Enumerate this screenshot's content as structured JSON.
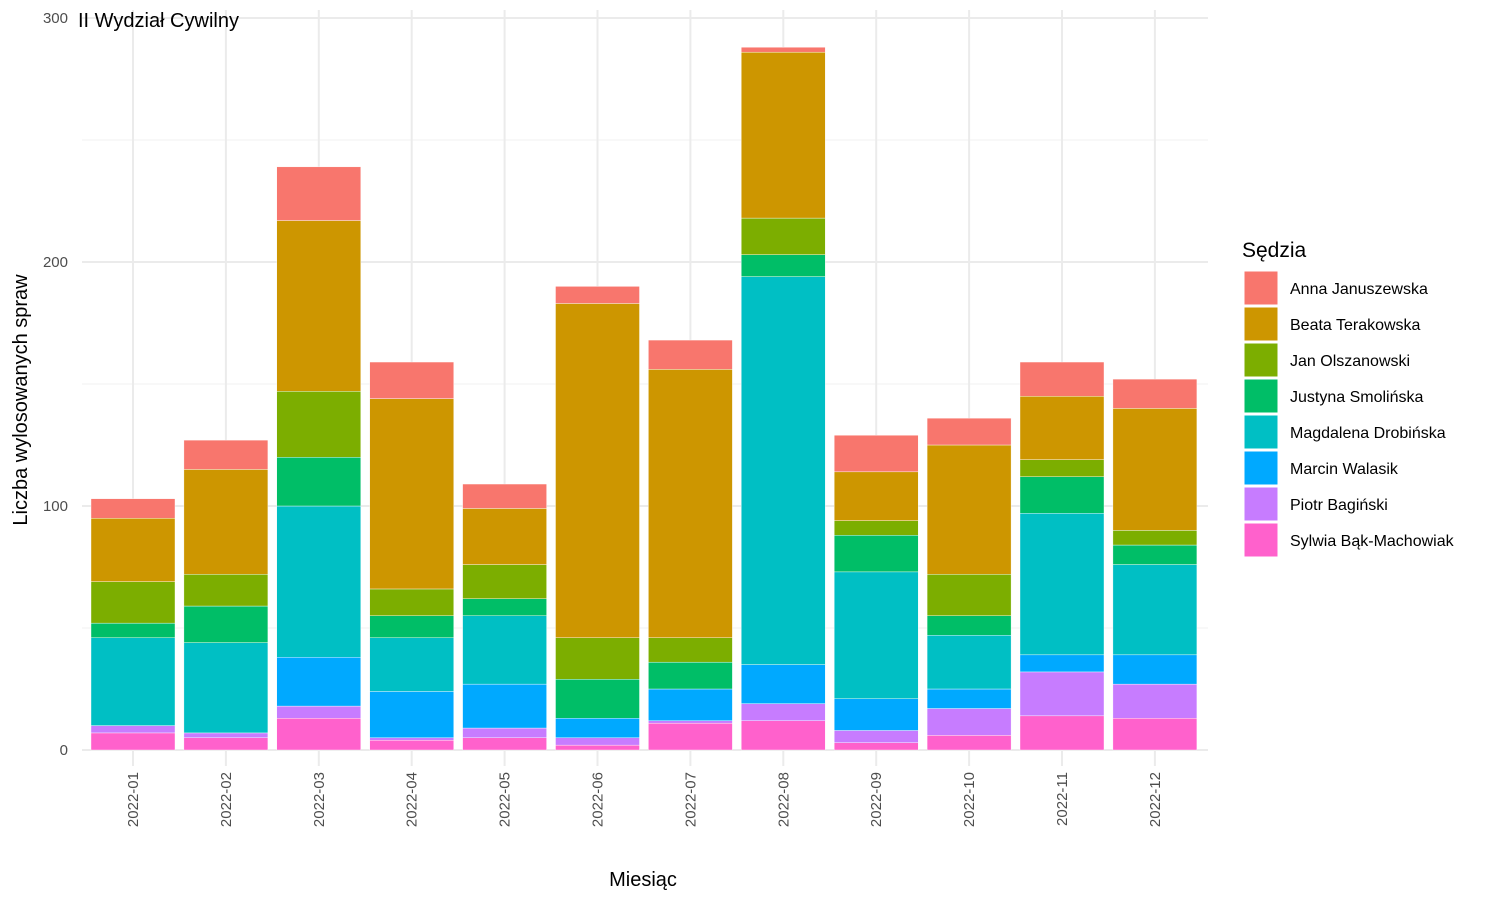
{
  "chart_data": {
    "type": "bar",
    "stacked": true,
    "title": "II Wydział Cywilny",
    "xlabel": "Miesiąc",
    "ylabel": "Liczba wylosowanych spraw",
    "ylim": [
      0,
      300
    ],
    "yticks": [
      0,
      100,
      200,
      300
    ],
    "grid": true,
    "legend_title": "Sędzia",
    "legend_position": "right",
    "categories": [
      "2022-01",
      "2022-02",
      "2022-03",
      "2022-04",
      "2022-05",
      "2022-06",
      "2022-07",
      "2022-08",
      "2022-09",
      "2022-10",
      "2022-11",
      "2022-12"
    ],
    "series": [
      {
        "name": "Anna Januszewska",
        "color": "#F8766D",
        "values": [
          8,
          12,
          22,
          15,
          10,
          7,
          12,
          2,
          15,
          11,
          14,
          12
        ]
      },
      {
        "name": "Beata Terakowska",
        "color": "#CD9600",
        "values": [
          26,
          43,
          70,
          78,
          23,
          137,
          110,
          68,
          20,
          53,
          26,
          50
        ]
      },
      {
        "name": "Jan Olszanowski",
        "color": "#7CAE00",
        "values": [
          17,
          13,
          27,
          11,
          14,
          17,
          10,
          15,
          6,
          17,
          7,
          6
        ]
      },
      {
        "name": "Justyna Smolińska",
        "color": "#00BE67",
        "values": [
          6,
          15,
          20,
          9,
          7,
          16,
          11,
          9,
          15,
          8,
          15,
          8
        ]
      },
      {
        "name": "Magdalena Drobińska",
        "color": "#00BFC4",
        "values": [
          36,
          37,
          62,
          22,
          28,
          0,
          0,
          159,
          52,
          22,
          58,
          37
        ]
      },
      {
        "name": "Marcin Walasik",
        "color": "#00A9FF",
        "values": [
          0,
          0,
          20,
          19,
          18,
          8,
          13,
          16,
          13,
          8,
          7,
          12
        ]
      },
      {
        "name": "Piotr Bagiński",
        "color": "#C77CFF",
        "values": [
          3,
          2,
          5,
          1,
          4,
          3,
          1,
          7,
          5,
          11,
          18,
          14
        ]
      },
      {
        "name": "Sylwia Bąk-Machowiak",
        "color": "#FF61CC",
        "values": [
          7,
          5,
          13,
          4,
          5,
          2,
          11,
          12,
          3,
          6,
          14,
          13
        ]
      }
    ]
  }
}
